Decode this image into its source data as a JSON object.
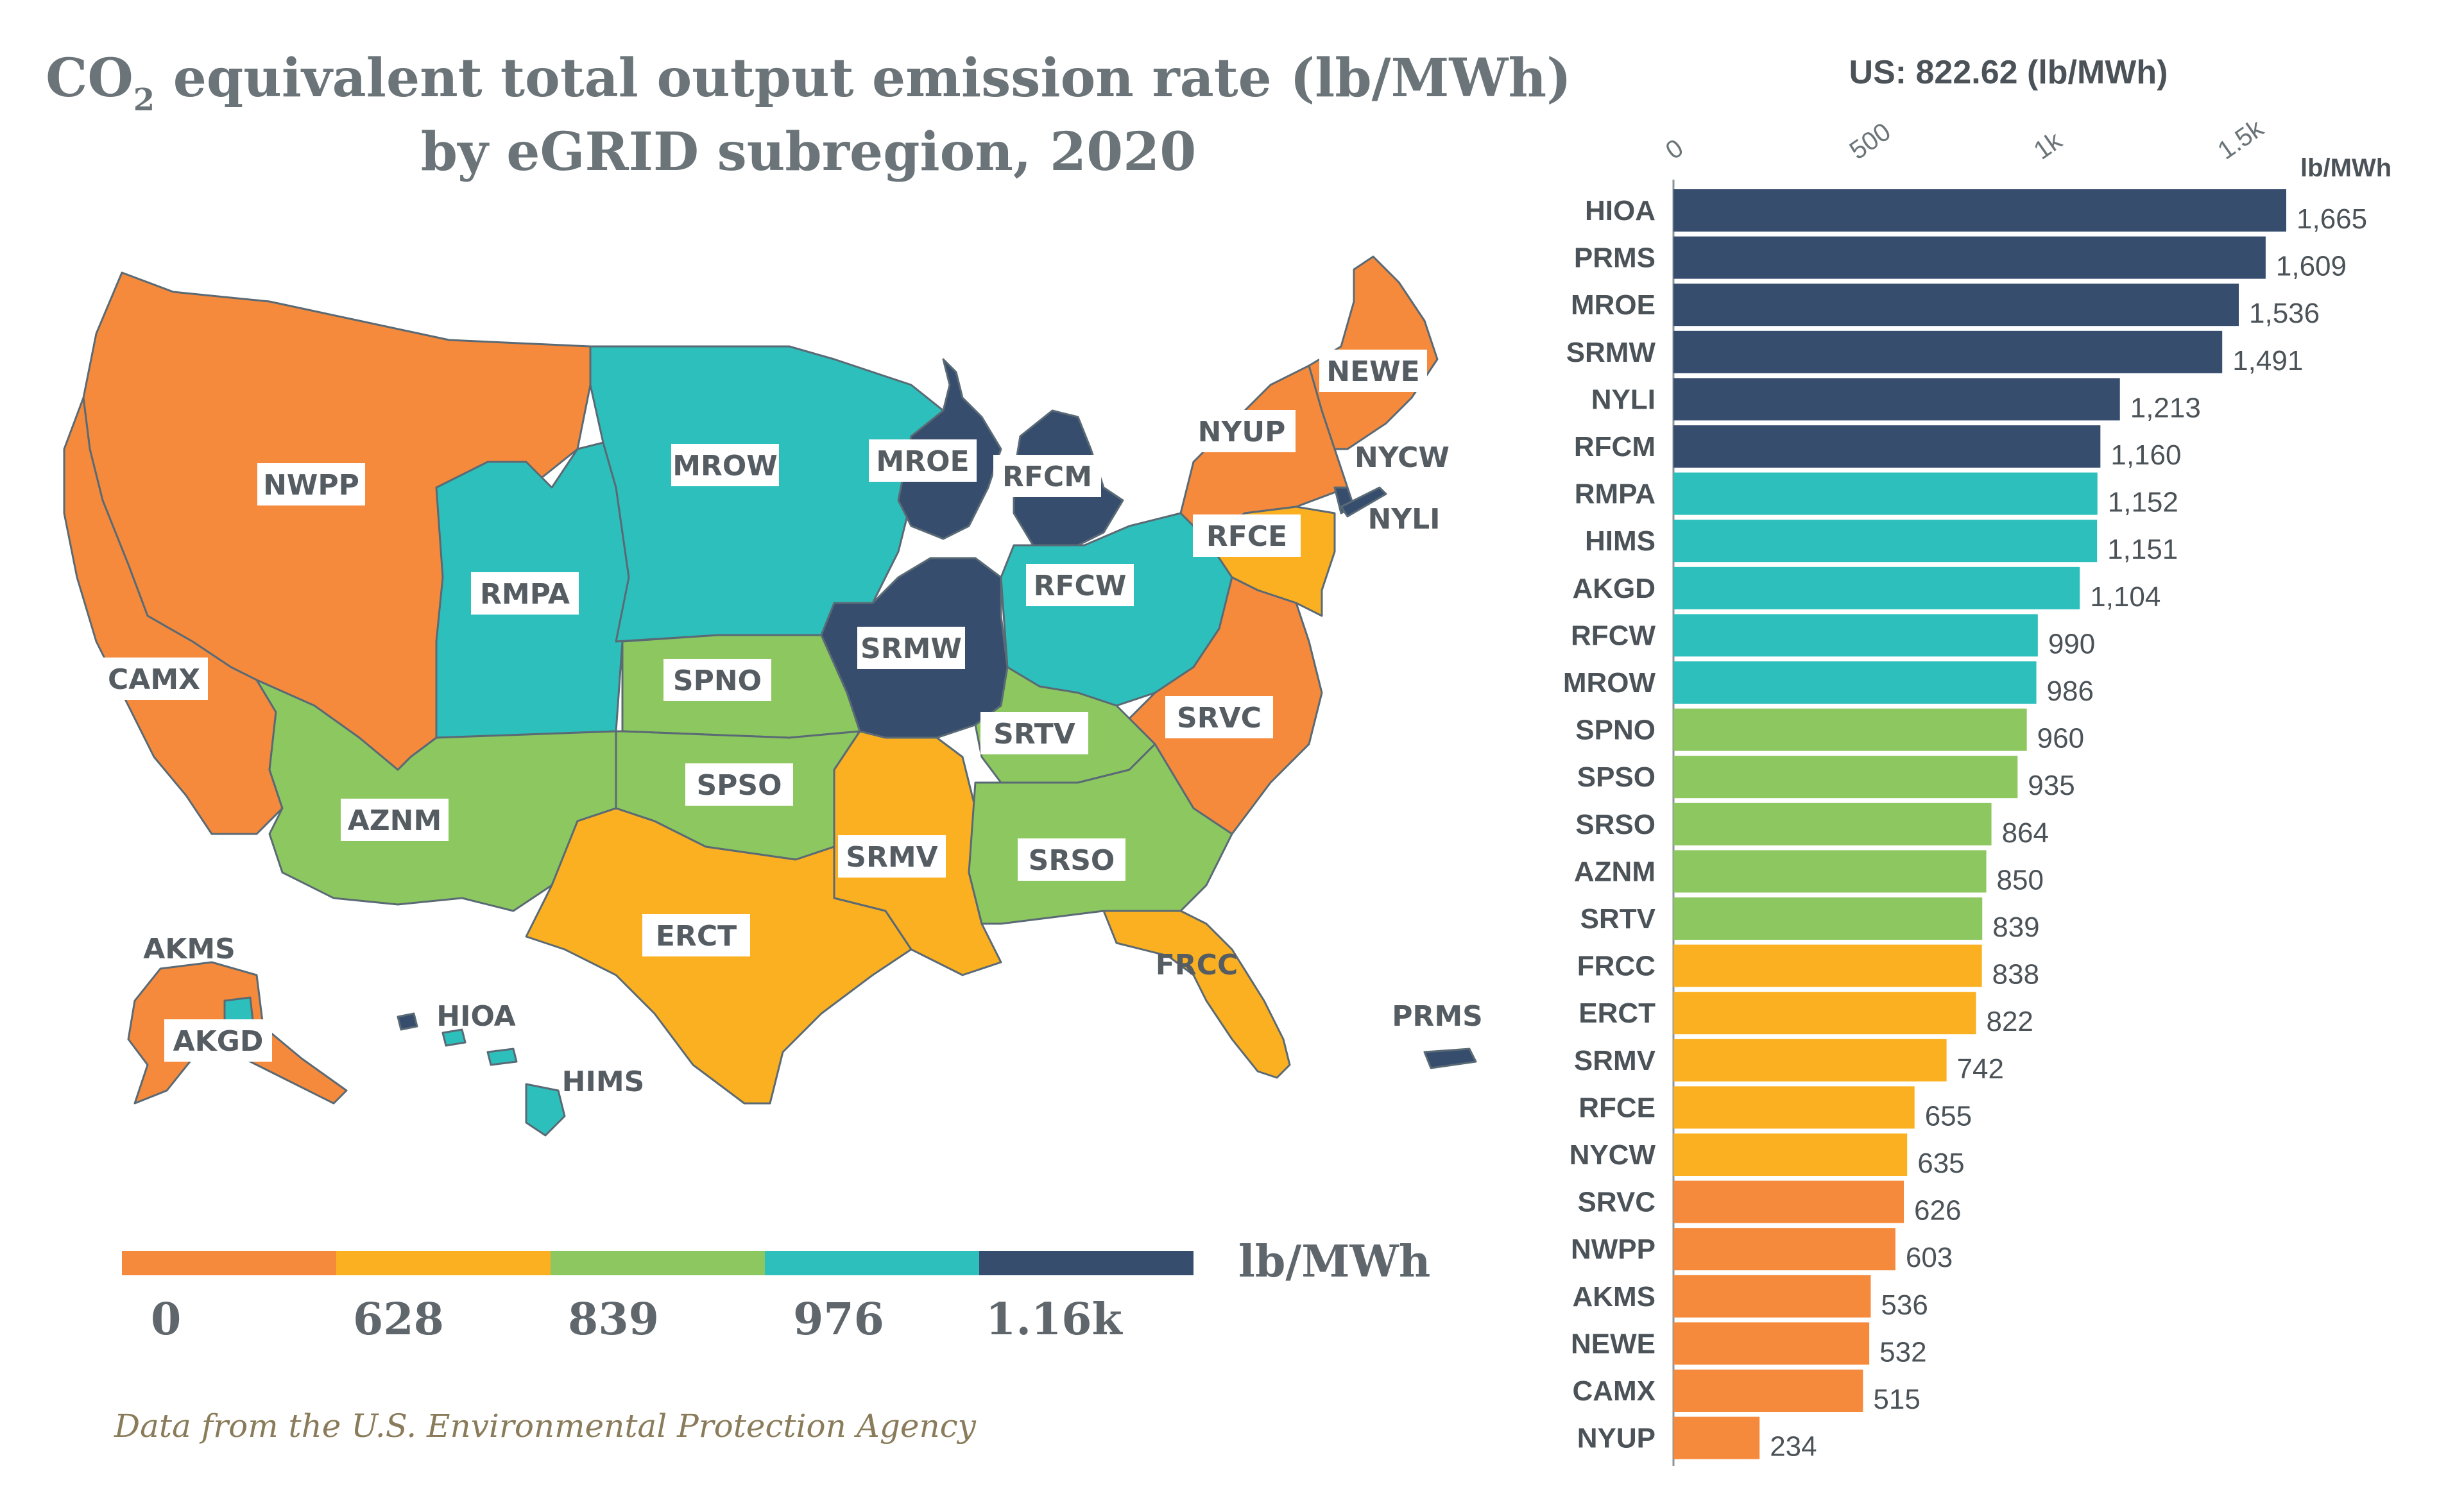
{
  "title": {
    "line1_prefix": "CO",
    "line1_sub": "2",
    "line1_suffix": " equivalent total output emission rate (lb/MWh)",
    "line2": "by eGRID subregion, 2020"
  },
  "source": "Data from the U.S. Environmental Protection Agency",
  "colors": {
    "orange": "#f58a3c",
    "yellow": "#fbb021",
    "green": "#8dc75f",
    "teal": "#2dbfbc",
    "navy": "#374d6e"
  },
  "legend": {
    "unit": "lb/MWh",
    "ticks": [
      "0",
      "628",
      "839",
      "976",
      "1.16k"
    ],
    "bins": [
      "orange",
      "yellow",
      "green",
      "teal",
      "navy"
    ]
  },
  "map_labels": [
    "NWPP",
    "MROW",
    "MROE",
    "RFCM",
    "NYUP",
    "NEWE",
    "NYCW",
    "NYLI",
    "RFCE",
    "RMPA",
    "RFCW",
    "CAMX",
    "SRMW",
    "SPNO",
    "SRTV",
    "SRVC",
    "SPSO",
    "AZNM",
    "SRMV",
    "SRSO",
    "ERCT",
    "FRCC",
    "AKMS",
    "AKGD",
    "HIOA",
    "HIMS",
    "PRMS"
  ],
  "chart_data": {
    "type": "bar",
    "orientation": "horizontal",
    "title": "US: 822.62 (lb/MWh)",
    "unit_label": "lb/MWh",
    "x_ticks": [
      "0",
      "500",
      "1k",
      "1.5k"
    ],
    "xlim": [
      0,
      1700
    ],
    "categories": [
      "HIOA",
      "PRMS",
      "MROE",
      "SRMW",
      "NYLI",
      "RFCM",
      "RMPA",
      "HIMS",
      "AKGD",
      "RFCW",
      "MROW",
      "SPNO",
      "SPSO",
      "SRSO",
      "AZNM",
      "SRTV",
      "FRCC",
      "ERCT",
      "SRMV",
      "RFCE",
      "NYCW",
      "SRVC",
      "NWPP",
      "AKMS",
      "NEWE",
      "CAMX",
      "NYUP"
    ],
    "values": [
      1665,
      1609,
      1536,
      1491,
      1213,
      1160,
      1152,
      1151,
      1104,
      990,
      986,
      960,
      935,
      864,
      850,
      839,
      838,
      822,
      742,
      655,
      635,
      626,
      603,
      536,
      532,
      515,
      234
    ],
    "value_labels": [
      "1,665",
      "1,609",
      "1,536",
      "1,491",
      "1,213",
      "1,160",
      "1,152",
      "1,151",
      "1,104",
      "990",
      "986",
      "960",
      "935",
      "864",
      "850",
      "839",
      "838",
      "822",
      "742",
      "655",
      "635",
      "626",
      "603",
      "536",
      "532",
      "515",
      "234"
    ],
    "bar_colors": [
      "navy",
      "navy",
      "navy",
      "navy",
      "navy",
      "navy",
      "teal",
      "teal",
      "teal",
      "teal",
      "teal",
      "green",
      "green",
      "green",
      "green",
      "green",
      "yellow",
      "yellow",
      "yellow",
      "yellow",
      "yellow",
      "orange",
      "orange",
      "orange",
      "orange",
      "orange",
      "orange"
    ]
  }
}
